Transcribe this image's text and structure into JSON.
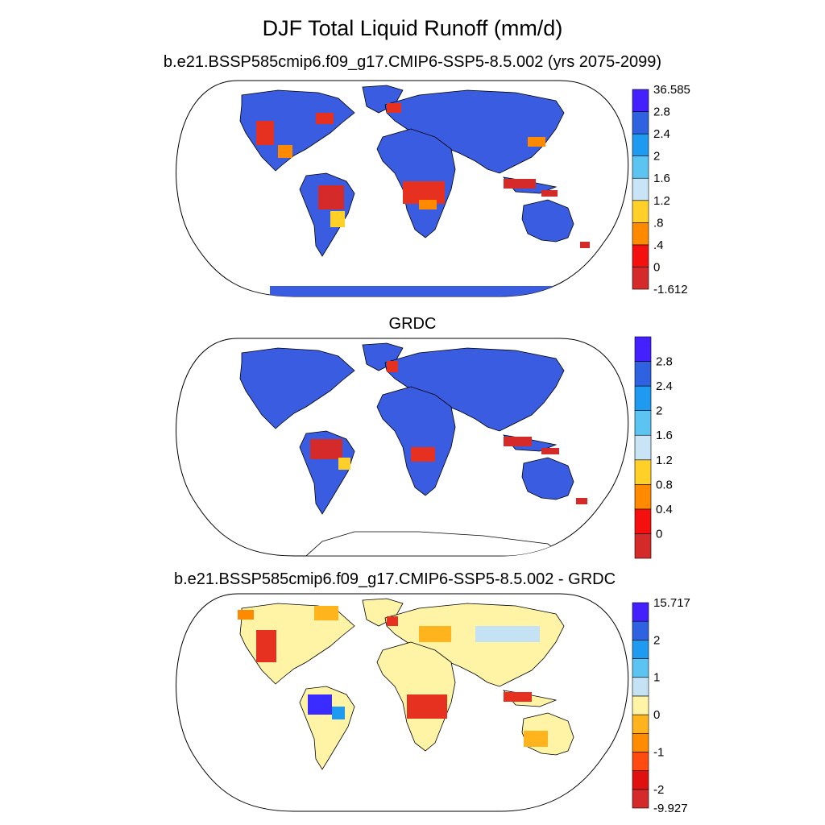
{
  "title": "DJF Total Liquid Runoff (mm/d)",
  "panels": [
    {
      "subtitle": "b.e21.BSSP585cmip6.f09_g17.CMIP6-SSP5-8.5.002 (yrs 2075-2099)",
      "colorbar": {
        "labels": [
          "36.585",
          "2.8",
          "2.4",
          "2",
          "1.6",
          "1.2",
          ".8",
          ".4",
          "0",
          "-1.612"
        ],
        "colors": [
          "#d42a2a",
          "#f51010",
          "#ff8a00",
          "#ffd028",
          "#c8e4f6",
          "#5cc4f0",
          "#1e9af0",
          "#2e62e0",
          "#4420ff"
        ]
      }
    },
    {
      "subtitle": "GRDC",
      "colorbar": {
        "labels": [
          "2.8",
          "2.4",
          "2",
          "1.6",
          "1.2",
          "0.8",
          "0.4",
          "0"
        ],
        "colors": [
          "#d42a2a",
          "#f51010",
          "#ff8a00",
          "#ffd028",
          "#c8e4f6",
          "#5cc4f0",
          "#1e9af0",
          "#2e62e0",
          "#4420ff"
        ]
      }
    },
    {
      "subtitle": "b.e21.BSSP585cmip6.f09_g17.CMIP6-SSP5-8.5.002 - GRDC",
      "colorbar": {
        "labels": [
          "15.717",
          "2",
          "1",
          "0",
          "-1",
          "-2",
          "-9.927"
        ],
        "colors": [
          "#d42a2a",
          "#e01010",
          "#ff4a10",
          "#ff8c00",
          "#ffb41e",
          "#fff4a6",
          "#c4e2f4",
          "#5cc4f0",
          "#1e9af0",
          "#2e62e0",
          "#4420ff"
        ]
      }
    }
  ]
}
